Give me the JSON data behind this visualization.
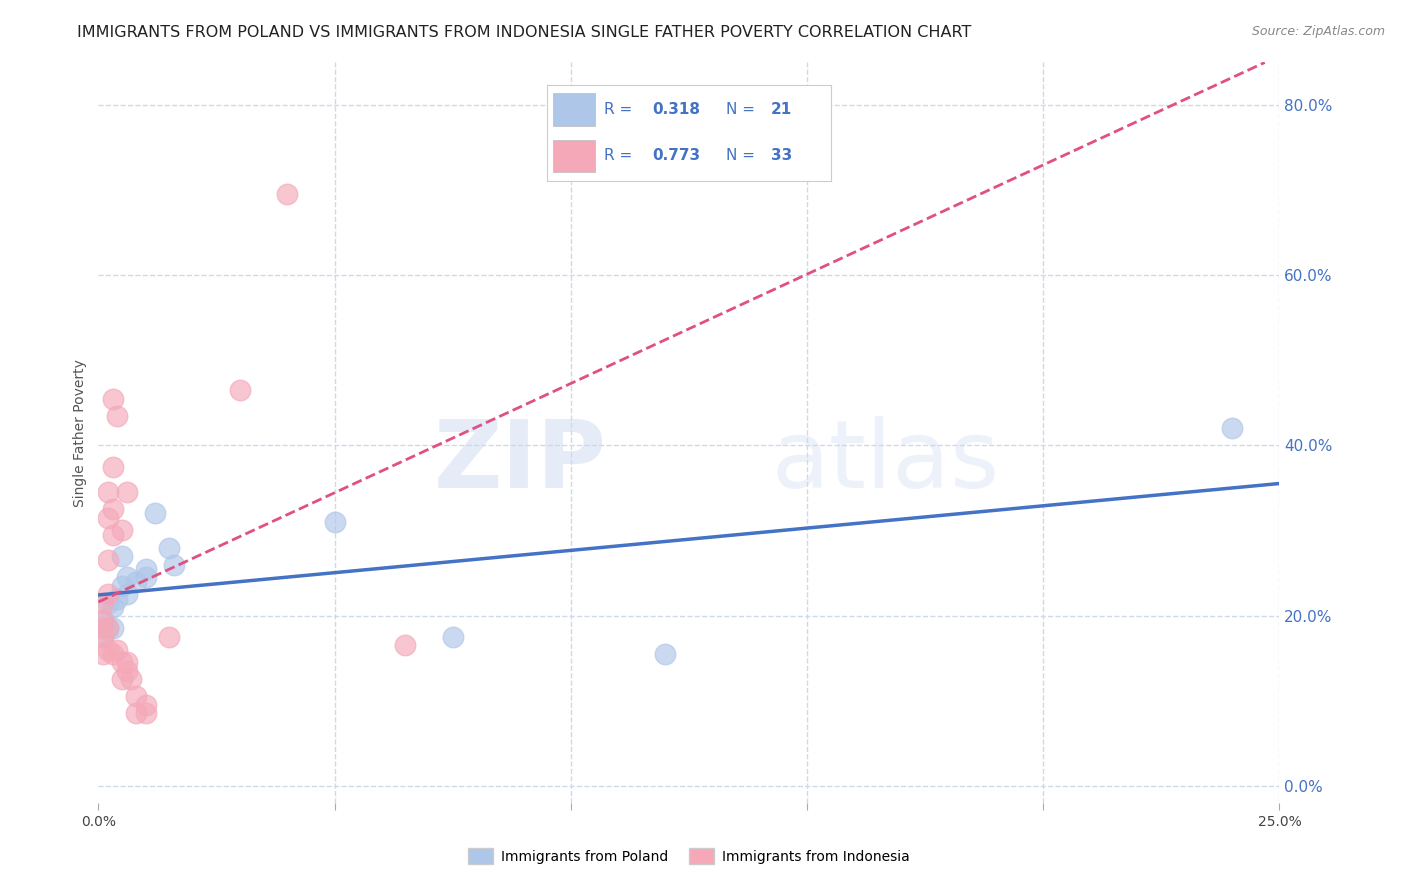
{
  "title": "IMMIGRANTS FROM POLAND VS IMMIGRANTS FROM INDONESIA SINGLE FATHER POVERTY CORRELATION CHART",
  "source": "Source: ZipAtlas.com",
  "ylabel": "Single Father Poverty",
  "ylabel_ticks": [
    "0.0%",
    "20.0%",
    "40.0%",
    "60.0%",
    "80.0%"
  ],
  "ylabel_vals": [
    0.0,
    0.2,
    0.4,
    0.6,
    0.8
  ],
  "xlim": [
    0.0,
    0.25
  ],
  "ylim": [
    -0.02,
    0.85
  ],
  "poland_R": "0.318",
  "poland_N": "21",
  "indonesia_R": "0.773",
  "indonesia_N": "33",
  "poland_color": "#aec6e8",
  "indonesia_color": "#f4a8b8",
  "poland_line_color": "#4472c4",
  "indonesia_line_color": "#e05080",
  "stats_text_color": "#4472c4",
  "poland_scatter": [
    [
      0.001,
      0.175
    ],
    [
      0.001,
      0.195
    ],
    [
      0.002,
      0.215
    ],
    [
      0.002,
      0.185
    ],
    [
      0.003,
      0.185
    ],
    [
      0.003,
      0.21
    ],
    [
      0.004,
      0.22
    ],
    [
      0.005,
      0.235
    ],
    [
      0.005,
      0.27
    ],
    [
      0.006,
      0.245
    ],
    [
      0.006,
      0.225
    ],
    [
      0.008,
      0.24
    ],
    [
      0.01,
      0.255
    ],
    [
      0.01,
      0.245
    ],
    [
      0.012,
      0.32
    ],
    [
      0.015,
      0.28
    ],
    [
      0.016,
      0.26
    ],
    [
      0.05,
      0.31
    ],
    [
      0.075,
      0.175
    ],
    [
      0.12,
      0.155
    ],
    [
      0.24,
      0.42
    ]
  ],
  "indonesia_scatter": [
    [
      0.001,
      0.155
    ],
    [
      0.001,
      0.175
    ],
    [
      0.001,
      0.185
    ],
    [
      0.001,
      0.195
    ],
    [
      0.001,
      0.215
    ],
    [
      0.002,
      0.16
    ],
    [
      0.002,
      0.185
    ],
    [
      0.002,
      0.225
    ],
    [
      0.002,
      0.265
    ],
    [
      0.002,
      0.315
    ],
    [
      0.002,
      0.345
    ],
    [
      0.003,
      0.155
    ],
    [
      0.003,
      0.295
    ],
    [
      0.003,
      0.325
    ],
    [
      0.003,
      0.375
    ],
    [
      0.003,
      0.455
    ],
    [
      0.004,
      0.16
    ],
    [
      0.004,
      0.435
    ],
    [
      0.005,
      0.125
    ],
    [
      0.005,
      0.145
    ],
    [
      0.005,
      0.3
    ],
    [
      0.006,
      0.135
    ],
    [
      0.006,
      0.145
    ],
    [
      0.006,
      0.345
    ],
    [
      0.007,
      0.125
    ],
    [
      0.008,
      0.085
    ],
    [
      0.008,
      0.105
    ],
    [
      0.01,
      0.085
    ],
    [
      0.01,
      0.095
    ],
    [
      0.015,
      0.175
    ],
    [
      0.03,
      0.465
    ],
    [
      0.04,
      0.695
    ],
    [
      0.065,
      0.165
    ]
  ],
  "watermark_zip": "ZIP",
  "watermark_atlas": "atlas",
  "background_color": "#ffffff",
  "grid_color": "#d0d8ee",
  "title_fontsize": 11.5,
  "axis_label_fontsize": 10,
  "tick_fontsize": 10,
  "right_tick_color": "#4472c4"
}
